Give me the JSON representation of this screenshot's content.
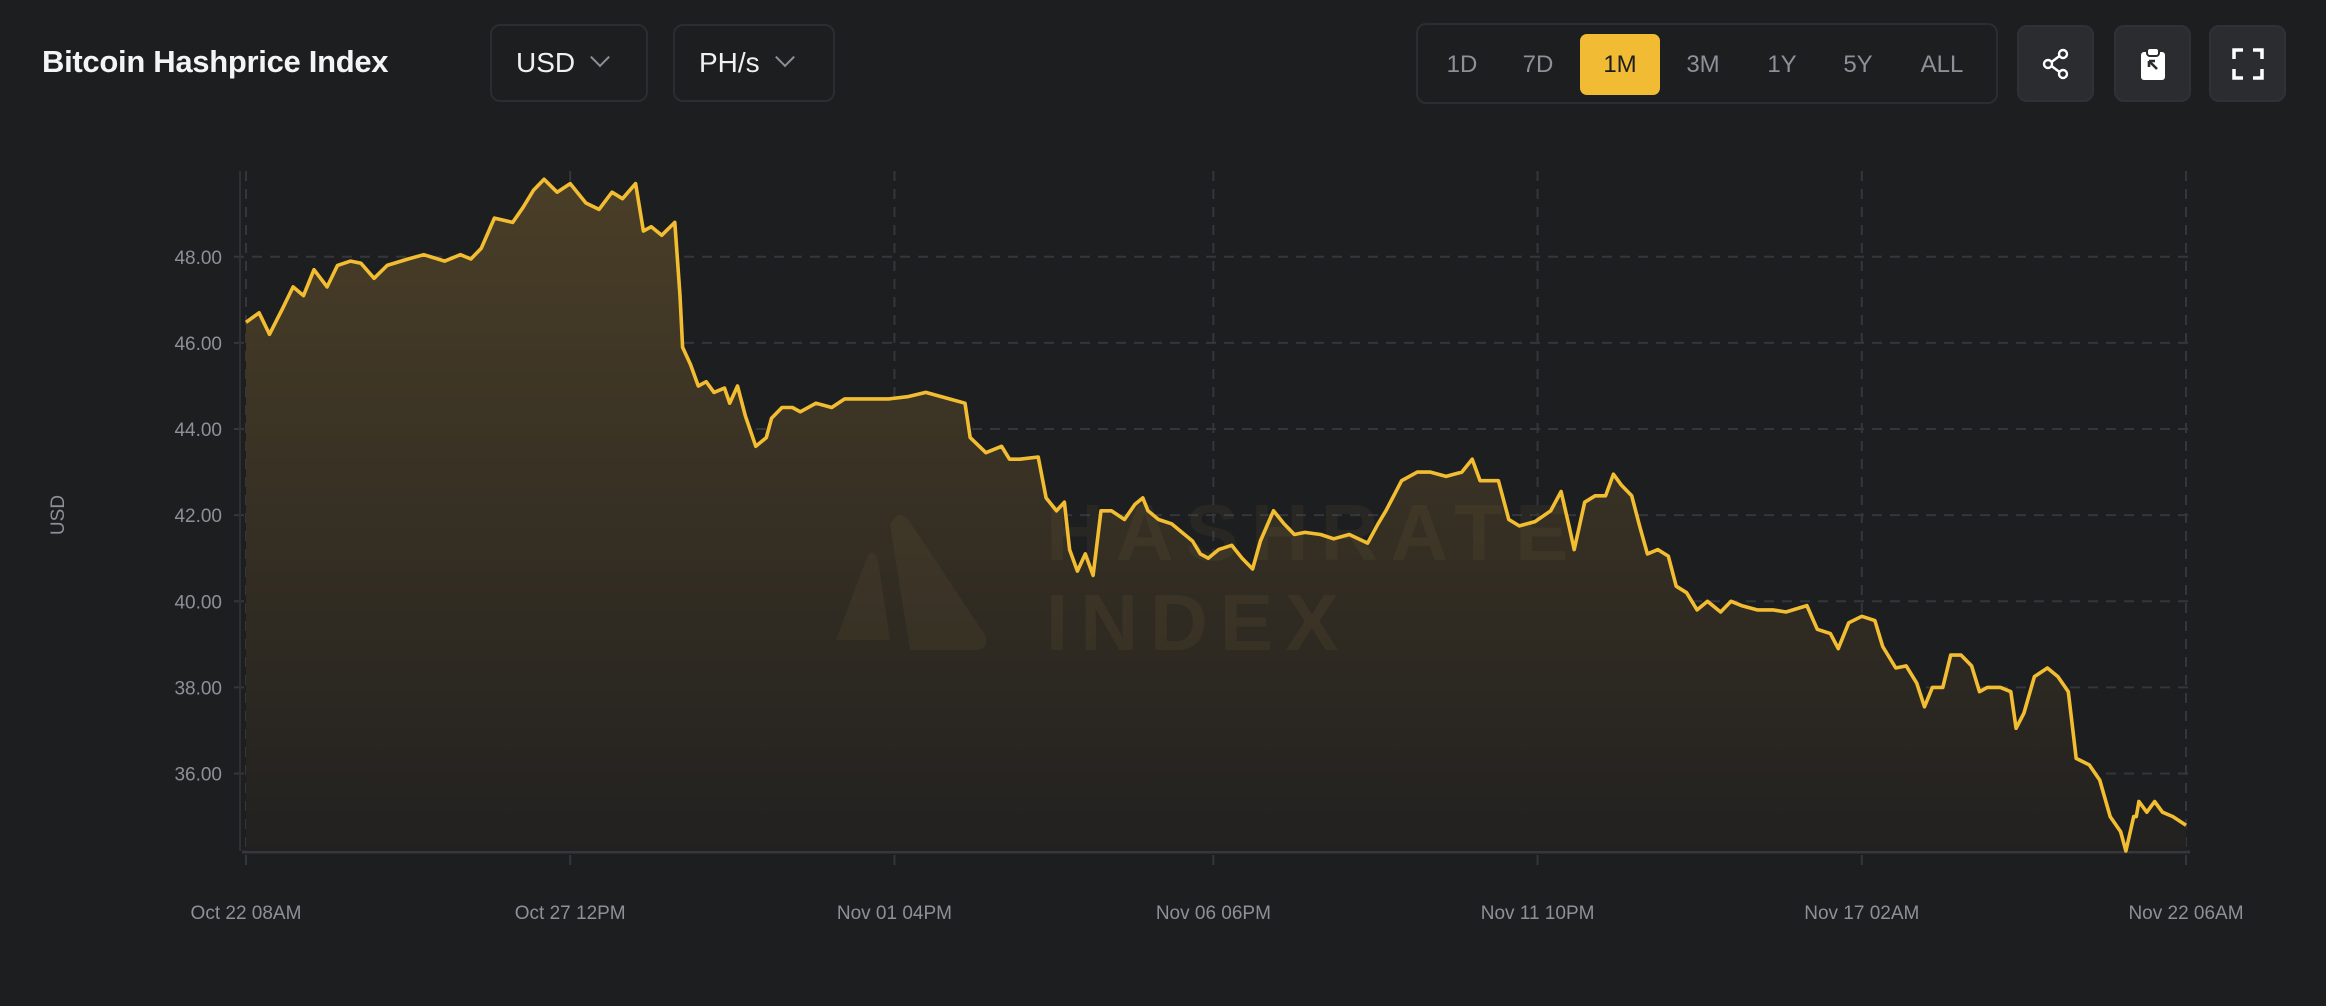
{
  "header": {
    "title": "Bitcoin Hashprice Index",
    "currency_select": {
      "value": "USD",
      "icon": "chevron-down-icon"
    },
    "unit_select": {
      "value": "PH/s",
      "icon": "chevron-down-icon"
    },
    "periods": [
      {
        "label": "1D",
        "active": false
      },
      {
        "label": "7D",
        "active": false
      },
      {
        "label": "1M",
        "active": true
      },
      {
        "label": "3M",
        "active": false
      },
      {
        "label": "1Y",
        "active": false
      },
      {
        "label": "5Y",
        "active": false
      },
      {
        "label": "ALL",
        "active": false
      }
    ],
    "actions": [
      {
        "name": "share",
        "icon": "share-icon"
      },
      {
        "name": "copy-to-clipboard",
        "icon": "clipboard-icon"
      },
      {
        "name": "fullscreen",
        "icon": "fullscreen-icon"
      }
    ]
  },
  "colors": {
    "line": "#f3bd32",
    "accent": "#f1bb34",
    "background": "#1d1e20"
  },
  "watermark": {
    "line1": "HASHRATE",
    "line2": "INDEX"
  },
  "chart_data": {
    "type": "area",
    "title": "",
    "xlabel": "",
    "ylabel": "USD",
    "ylim": [
      34.2,
      49.9
    ],
    "y_ticks": [
      "36.00",
      "38.00",
      "40.00",
      "42.00",
      "44.00",
      "46.00",
      "48.00"
    ],
    "y_tick_values": [
      36,
      38,
      40,
      42,
      44,
      46,
      48
    ],
    "x_ticks": [
      "Oct 22 08AM",
      "Oct 27 12PM",
      "Nov 01 04PM",
      "Nov 06 06PM",
      "Nov 11 10PM",
      "Nov 17 02AM",
      "Nov 22 06AM"
    ],
    "x_tick_times": [
      "Oct 22 08:00",
      "Oct 27 12:00",
      "Nov 01 16:00",
      "Nov 06 18:00",
      "Nov 11 22:00",
      "Nov 17 02:00",
      "Nov 22 06:00"
    ],
    "grid": true,
    "legend": "none",
    "series": [
      {
        "points": [
          [
            "Oct 22 08:00",
            46.48
          ],
          [
            "Oct 22 13:00",
            46.7
          ],
          [
            "Oct 22 17:00",
            46.2
          ],
          [
            "Oct 22 22:00",
            46.8
          ],
          [
            "Oct 23 02:00",
            47.3
          ],
          [
            "Oct 23 06:00",
            47.1
          ],
          [
            "Oct 23 10:00",
            47.7
          ],
          [
            "Oct 23 15:00",
            47.3
          ],
          [
            "Oct 23 19:00",
            47.8
          ],
          [
            "Oct 24 00:00",
            47.9
          ],
          [
            "Oct 24 04:00",
            47.85
          ],
          [
            "Oct 24 09:00",
            47.5
          ],
          [
            "Oct 24 14:00",
            47.8
          ],
          [
            "Oct 24 22:00",
            47.95
          ],
          [
            "Oct 25 04:00",
            48.05
          ],
          [
            "Oct 25 12:00",
            47.9
          ],
          [
            "Oct 25 18:00",
            48.05
          ],
          [
            "Oct 25 22:00",
            47.95
          ],
          [
            "Oct 26 02:00",
            48.2
          ],
          [
            "Oct 26 07:00",
            48.9
          ],
          [
            "Oct 26 14:00",
            48.8
          ],
          [
            "Oct 26 18:00",
            49.15
          ],
          [
            "Oct 26 22:00",
            49.55
          ],
          [
            "Oct 27 02:00",
            49.8
          ],
          [
            "Oct 27 07:00",
            49.5
          ],
          [
            "Oct 27 12:00",
            49.7
          ],
          [
            "Oct 27 18:00",
            49.25
          ],
          [
            "Oct 27 23:00",
            49.1
          ],
          [
            "Oct 28 04:00",
            49.5
          ],
          [
            "Oct 28 08:00",
            49.35
          ],
          [
            "Oct 28 13:00",
            49.7
          ],
          [
            "Oct 28 16:00",
            48.6
          ],
          [
            "Oct 28 19:00",
            48.7
          ],
          [
            "Oct 28 23:00",
            48.5
          ],
          [
            "Oct 29 04:00",
            48.8
          ],
          [
            "Oct 29 06:00",
            47.1
          ],
          [
            "Oct 29 07:00",
            45.9
          ],
          [
            "Oct 29 10:00",
            45.5
          ],
          [
            "Oct 29 13:00",
            45.0
          ],
          [
            "Oct 29 16:00",
            45.1
          ],
          [
            "Oct 29 19:00",
            44.85
          ],
          [
            "Oct 29 23:00",
            44.95
          ],
          [
            "Oct 30 01:00",
            44.6
          ],
          [
            "Oct 30 04:00",
            45.0
          ],
          [
            "Oct 30 07:00",
            44.3
          ],
          [
            "Oct 30 11:00",
            43.6
          ],
          [
            "Oct 30 15:00",
            43.8
          ],
          [
            "Oct 30 17:00",
            44.25
          ],
          [
            "Oct 30 21:00",
            44.5
          ],
          [
            "Oct 31 01:00",
            44.5
          ],
          [
            "Oct 31 04:00",
            44.4
          ],
          [
            "Oct 31 10:00",
            44.6
          ],
          [
            "Oct 31 16:00",
            44.5
          ],
          [
            "Oct 31 21:00",
            44.7
          ],
          [
            "Nov 01 06:00",
            44.7
          ],
          [
            "Nov 01 14:00",
            44.7
          ],
          [
            "Nov 01 21:00",
            44.75
          ],
          [
            "Nov 02 04:00",
            44.85
          ],
          [
            "Nov 02 13:00",
            44.7
          ],
          [
            "Nov 02 19:00",
            44.6
          ],
          [
            "Nov 02 21:00",
            43.8
          ],
          [
            "Nov 03 03:00",
            43.45
          ],
          [
            "Nov 03 09:00",
            43.6
          ],
          [
            "Nov 03 12:00",
            43.3
          ],
          [
            "Nov 03 16:00",
            43.3
          ],
          [
            "Nov 03 23:00",
            43.35
          ],
          [
            "Nov 04 02:00",
            42.4
          ],
          [
            "Nov 04 06:00",
            42.1
          ],
          [
            "Nov 04 09:00",
            42.3
          ],
          [
            "Nov 04 11:00",
            41.2
          ],
          [
            "Nov 04 14:00",
            40.7
          ],
          [
            "Nov 04 17:00",
            41.1
          ],
          [
            "Nov 04 20:00",
            40.6
          ],
          [
            "Nov 04 23:00",
            42.1
          ],
          [
            "Nov 05 03:00",
            42.1
          ],
          [
            "Nov 05 08:00",
            41.9
          ],
          [
            "Nov 05 12:00",
            42.25
          ],
          [
            "Nov 05 15:00",
            42.4
          ],
          [
            "Nov 05 17:00",
            42.1
          ],
          [
            "Nov 05 21:00",
            41.9
          ],
          [
            "Nov 06 02:00",
            41.8
          ],
          [
            "Nov 06 06:00",
            41.6
          ],
          [
            "Nov 06 10:00",
            41.4
          ],
          [
            "Nov 06 13:00",
            41.1
          ],
          [
            "Nov 06 16:00",
            41.0
          ],
          [
            "Nov 06 20:00",
            41.2
          ],
          [
            "Nov 07 01:00",
            41.3
          ],
          [
            "Nov 07 05:00",
            41.0
          ],
          [
            "Nov 07 09:00",
            40.75
          ],
          [
            "Nov 07 12:00",
            41.4
          ],
          [
            "Nov 07 17:00",
            42.1
          ],
          [
            "Nov 07 21:00",
            41.8
          ],
          [
            "Nov 08 01:00",
            41.55
          ],
          [
            "Nov 08 05:00",
            41.6
          ],
          [
            "Nov 08 11:00",
            41.55
          ],
          [
            "Nov 08 16:00",
            41.45
          ],
          [
            "Nov 08 22:00",
            41.55
          ],
          [
            "Nov 09 05:00",
            41.35
          ],
          [
            "Nov 09 09:00",
            41.8
          ],
          [
            "Nov 09 12:00",
            42.1
          ],
          [
            "Nov 09 18:00",
            42.8
          ],
          [
            "Nov 10 00:00",
            43.0
          ],
          [
            "Nov 10 05:00",
            43.0
          ],
          [
            "Nov 10 11:00",
            42.9
          ],
          [
            "Nov 10 17:00",
            43.0
          ],
          [
            "Nov 10 21:00",
            43.3
          ],
          [
            "Nov 11 00:00",
            42.8
          ],
          [
            "Nov 11 07:00",
            42.8
          ],
          [
            "Nov 11 11:00",
            41.9
          ],
          [
            "Nov 11 15:00",
            41.75
          ],
          [
            "Nov 11 21:00",
            41.85
          ],
          [
            "Nov 12 03:00",
            42.1
          ],
          [
            "Nov 12 07:00",
            42.55
          ],
          [
            "Nov 12 10:00",
            41.75
          ],
          [
            "Nov 12 12:00",
            41.2
          ],
          [
            "Nov 12 16:00",
            42.3
          ],
          [
            "Nov 12 20:00",
            42.45
          ],
          [
            "Nov 13 00:00",
            42.45
          ],
          [
            "Nov 13 03:00",
            42.95
          ],
          [
            "Nov 13 06:00",
            42.7
          ],
          [
            "Nov 13 10:00",
            42.45
          ],
          [
            "Nov 13 13:00",
            41.75
          ],
          [
            "Nov 13 16:00",
            41.1
          ],
          [
            "Nov 13 20:00",
            41.2
          ],
          [
            "Nov 14 00:00",
            41.05
          ],
          [
            "Nov 14 03:00",
            40.35
          ],
          [
            "Nov 14 07:00",
            40.2
          ],
          [
            "Nov 14 11:00",
            39.8
          ],
          [
            "Nov 14 15:00",
            40.0
          ],
          [
            "Nov 14 20:00",
            39.75
          ],
          [
            "Nov 15 00:00",
            40.0
          ],
          [
            "Nov 15 04:00",
            39.9
          ],
          [
            "Nov 15 10:00",
            39.8
          ],
          [
            "Nov 15 16:00",
            39.8
          ],
          [
            "Nov 15 21:00",
            39.75
          ],
          [
            "Nov 16 05:00",
            39.9
          ],
          [
            "Nov 16 09:00",
            39.35
          ],
          [
            "Nov 16 14:00",
            39.25
          ],
          [
            "Nov 16 17:00",
            38.9
          ],
          [
            "Nov 16 21:00",
            39.5
          ],
          [
            "Nov 17 02:00",
            39.65
          ],
          [
            "Nov 17 07:00",
            39.55
          ],
          [
            "Nov 17 10:00",
            38.95
          ],
          [
            "Nov 17 15:00",
            38.45
          ],
          [
            "Nov 17 19:00",
            38.5
          ],
          [
            "Nov 17 23:00",
            38.1
          ],
          [
            "Nov 18 02:00",
            37.55
          ],
          [
            "Nov 18 05:00",
            38.0
          ],
          [
            "Nov 18 09:00",
            38.0
          ],
          [
            "Nov 18 12:00",
            38.75
          ],
          [
            "Nov 18 16:00",
            38.75
          ],
          [
            "Nov 18 20:00",
            38.5
          ],
          [
            "Nov 18 23:00",
            37.9
          ],
          [
            "Nov 19 02:00",
            38.0
          ],
          [
            "Nov 19 07:00",
            38.0
          ],
          [
            "Nov 19 11:00",
            37.9
          ],
          [
            "Nov 19 13:00",
            37.05
          ],
          [
            "Nov 19 16:00",
            37.4
          ],
          [
            "Nov 19 20:00",
            38.25
          ],
          [
            "Nov 20 01:00",
            38.45
          ],
          [
            "Nov 20 05:00",
            38.25
          ],
          [
            "Nov 20 09:00",
            37.9
          ],
          [
            "Nov 20 12:00",
            36.35
          ],
          [
            "Nov 20 17:00",
            36.2
          ],
          [
            "Nov 20 21:00",
            35.85
          ],
          [
            "Nov 21 01:00",
            35.0
          ],
          [
            "Nov 21 05:00",
            34.65
          ],
          [
            "Nov 21 07:00",
            34.2
          ],
          [
            "Nov 21 10:00",
            35.0
          ],
          [
            "Nov 21 11:00",
            35.0
          ],
          [
            "Nov 21 12:00",
            35.35
          ],
          [
            "Nov 21 15:00",
            35.1
          ],
          [
            "Nov 21 18:00",
            35.35
          ],
          [
            "Nov 21 21:00",
            35.1
          ],
          [
            "Nov 22 01:00",
            35.0
          ],
          [
            "Nov 22 06:00",
            34.8
          ]
        ]
      }
    ]
  }
}
